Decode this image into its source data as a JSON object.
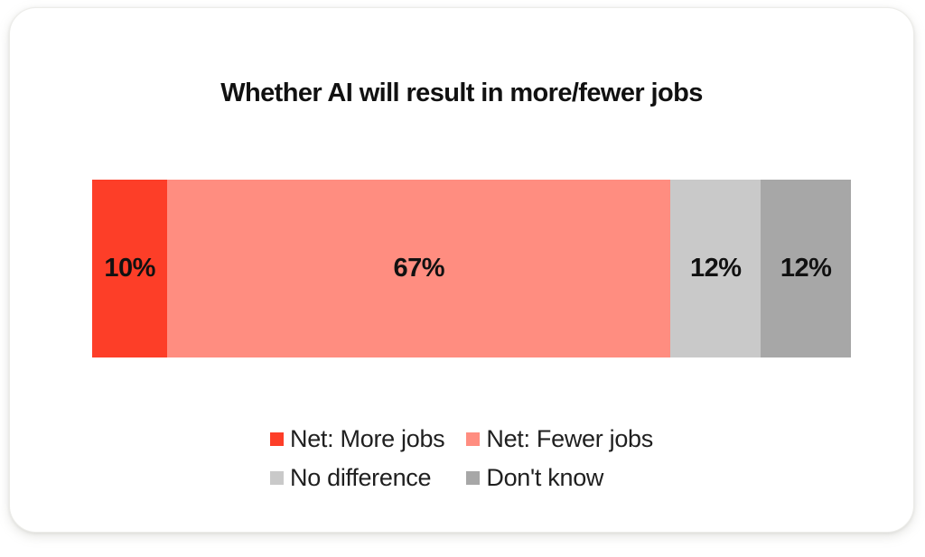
{
  "chart_data": {
    "type": "bar",
    "stacked": true,
    "orientation": "horizontal",
    "title": "Whether AI will result in more/fewer jobs",
    "categories": [
      "Net: More jobs",
      "Net: Fewer jobs",
      "No difference",
      "Don't know"
    ],
    "values": [
      10,
      67,
      12,
      12
    ],
    "labels": [
      "10%",
      "67%",
      "12%",
      "12%"
    ],
    "colors": [
      "#FD3E28",
      "#FF8D80",
      "#C9C9C9",
      "#A7A7A7"
    ],
    "label_color": "#111111",
    "grid": false,
    "axes_visible": false,
    "legend_position": "bottom",
    "legend_columns": 2
  }
}
